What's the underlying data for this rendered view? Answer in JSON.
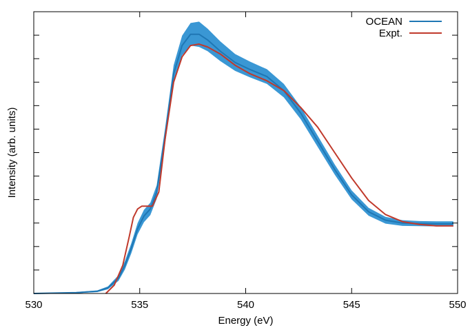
{
  "chart_data": {
    "type": "line",
    "xlabel": "Energy (eV)",
    "ylabel": "Intensity (arb. units)",
    "xlim": [
      530,
      550
    ],
    "ylim": [
      0,
      1.0
    ],
    "x_ticks": [
      530,
      535,
      540,
      545,
      550
    ],
    "y_ticks_unlabeled": 12,
    "y_tick_labels": "none",
    "grid": false,
    "legend_position": "top-right",
    "series": [
      {
        "name": "OCEAN",
        "color": "#1f77b4",
        "band_color": "#3a97d4",
        "x": [
          530,
          532,
          533,
          533.5,
          534,
          534.3,
          534.6,
          534.9,
          535.2,
          535.5,
          535.8,
          536.2,
          536.6,
          537.0,
          537.4,
          537.8,
          538.2,
          538.8,
          539.5,
          540.2,
          541.0,
          541.8,
          542.6,
          543.4,
          544.2,
          545.0,
          545.8,
          546.6,
          547.4,
          548.2,
          549.0,
          549.8
        ],
        "y": [
          0.0,
          0.003,
          0.008,
          0.02,
          0.055,
          0.1,
          0.16,
          0.23,
          0.275,
          0.3,
          0.36,
          0.56,
          0.78,
          0.88,
          0.92,
          0.92,
          0.9,
          0.86,
          0.82,
          0.795,
          0.77,
          0.72,
          0.64,
          0.54,
          0.44,
          0.35,
          0.29,
          0.26,
          0.25,
          0.248,
          0.247,
          0.247
        ],
        "band": [
          0.0,
          0.002,
          0.003,
          0.005,
          0.01,
          0.015,
          0.018,
          0.02,
          0.022,
          0.022,
          0.024,
          0.028,
          0.03,
          0.035,
          0.04,
          0.045,
          0.04,
          0.035,
          0.03,
          0.028,
          0.026,
          0.024,
          0.022,
          0.02,
          0.018,
          0.016,
          0.014,
          0.012,
          0.01,
          0.009,
          0.009,
          0.009
        ]
      },
      {
        "name": "Expt.",
        "color": "#c0392b",
        "x": [
          533.4,
          533.8,
          534.2,
          534.5,
          534.7,
          534.9,
          535.1,
          535.3,
          535.6,
          535.9,
          536.2,
          536.6,
          537.0,
          537.4,
          537.8,
          538.2,
          538.8,
          539.5,
          540.2,
          541.0,
          541.8,
          542.6,
          543.4,
          544.2,
          545.0,
          545.8,
          546.6,
          547.4,
          548.2,
          549.0,
          549.8
        ],
        "y": [
          0.0,
          0.03,
          0.1,
          0.2,
          0.27,
          0.3,
          0.31,
          0.31,
          0.31,
          0.36,
          0.55,
          0.75,
          0.84,
          0.88,
          0.885,
          0.875,
          0.85,
          0.81,
          0.78,
          0.755,
          0.72,
          0.66,
          0.59,
          0.5,
          0.41,
          0.33,
          0.28,
          0.255,
          0.245,
          0.24,
          0.24
        ]
      }
    ]
  }
}
